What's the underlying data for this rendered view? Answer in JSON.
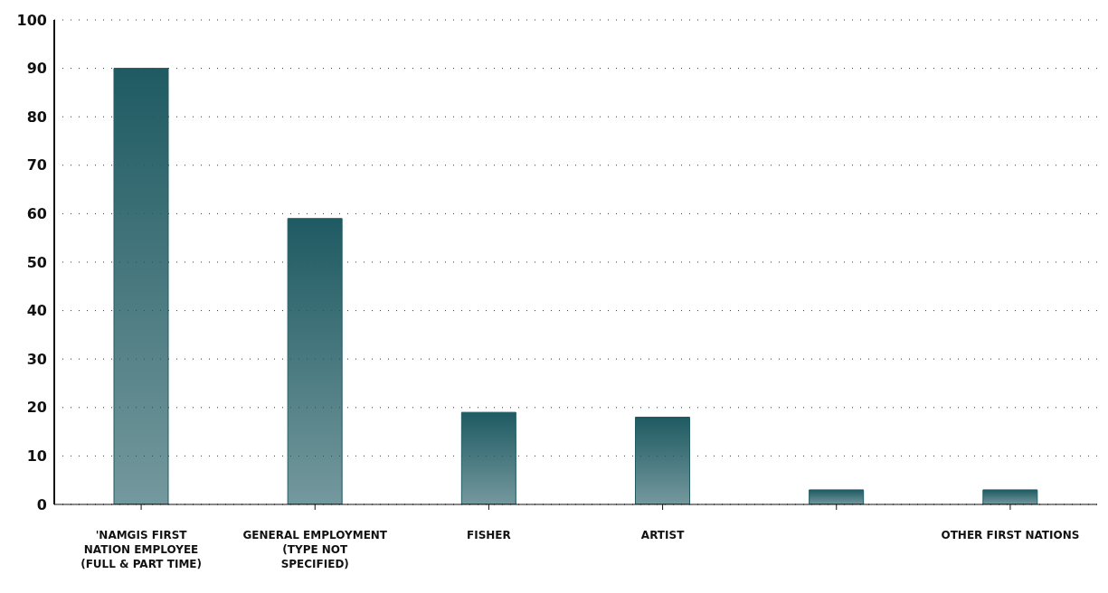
{
  "chart_data": {
    "type": "bar",
    "categories": [
      "'NAMGIS FIRST NATION EMPLOYEE (FULL & PART TIME)",
      "GENERAL EMPLOYMENT (TYPE NOT SPECIFIED)",
      "FISHER",
      "ARTIST",
      null,
      "OTHER FIRST NATIONS"
    ],
    "values": [
      90,
      59,
      19,
      18,
      3,
      3
    ],
    "color": "#1f5a62",
    "ylim": [
      0,
      100
    ],
    "yticks": [
      0,
      10,
      20,
      30,
      40,
      50,
      60,
      70,
      80,
      90,
      100
    ],
    "grid": "y"
  }
}
